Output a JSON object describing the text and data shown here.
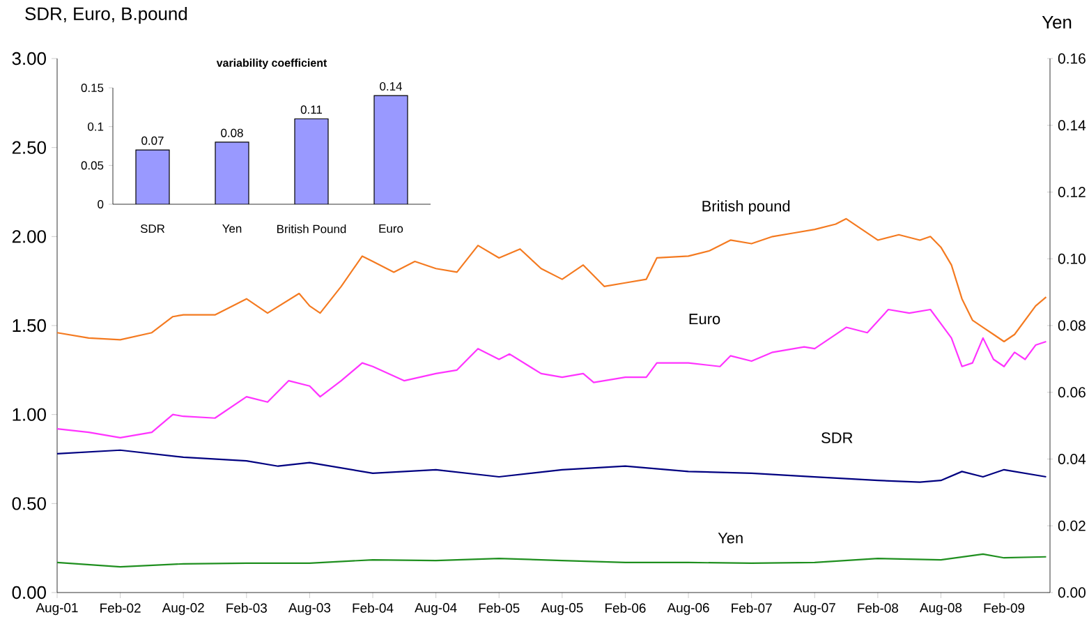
{
  "chart_data": [
    {
      "type": "line",
      "ylabel": "SDR, Euro,  B.pound",
      "y2label": "Yen",
      "xlim": [
        "2001-08",
        "2009-06-12"
      ],
      "xticks": [
        {
          "value": "2001-08",
          "label": "Aug-01"
        },
        {
          "value": "2002-02",
          "label": "Feb-02"
        },
        {
          "value": "2002-08",
          "label": "Aug-02"
        },
        {
          "value": "2003-02",
          "label": "Feb-03"
        },
        {
          "value": "2003-08",
          "label": "Aug-03"
        },
        {
          "value": "2004-02",
          "label": "Feb-04"
        },
        {
          "value": "2004-08",
          "label": "Aug-04"
        },
        {
          "value": "2005-02",
          "label": "Feb-05"
        },
        {
          "value": "2005-08",
          "label": "Aug-05"
        },
        {
          "value": "2006-02",
          "label": "Feb-06"
        },
        {
          "value": "2006-08",
          "label": "Aug-06"
        },
        {
          "value": "2007-02",
          "label": "Feb-07"
        },
        {
          "value": "2007-08",
          "label": "Aug-07"
        },
        {
          "value": "2008-02",
          "label": "Feb-08"
        },
        {
          "value": "2008-08",
          "label": "Aug-08"
        },
        {
          "value": "2009-02",
          "label": "Feb-09"
        }
      ],
      "ylim": [
        0,
        3
      ],
      "yticks": [
        {
          "value": 0,
          "label": "0.00"
        },
        {
          "value": 0.5,
          "label": "0.50"
        },
        {
          "value": 1,
          "label": "1.00"
        },
        {
          "value": 1.5,
          "label": "1.50"
        },
        {
          "value": 2,
          "label": "2.00"
        },
        {
          "value": 2.5,
          "label": "2.50"
        },
        {
          "value": 3,
          "label": "3.00"
        }
      ],
      "y2lim": [
        0,
        0.16
      ],
      "y2ticks": [
        {
          "value": 0,
          "label": "0.00"
        },
        {
          "value": 0.02,
          "label": "0.02"
        },
        {
          "value": 0.04,
          "label": "0.04"
        },
        {
          "value": 0.06,
          "label": "0.06"
        },
        {
          "value": 0.08,
          "label": "0.08"
        },
        {
          "value": 0.1,
          "label": "0.10"
        },
        {
          "value": 0.12,
          "label": "0.12"
        },
        {
          "value": 0.14,
          "label": "0.14"
        },
        {
          "value": 0.16,
          "label": "0.16"
        }
      ],
      "series": [
        {
          "name": "British pound",
          "color": "#f47a20",
          "x": [
            "2001-08",
            "2001-11",
            "2002-02",
            "2002-05",
            "2002-07",
            "2002-08",
            "2002-11",
            "2003-02",
            "2003-04",
            "2003-07",
            "2003-08",
            "2003-09",
            "2003-11",
            "2004-01",
            "2004-02",
            "2004-04",
            "2004-06",
            "2004-08",
            "2004-10",
            "2004-12",
            "2005-02",
            "2005-04",
            "2005-06",
            "2005-08",
            "2005-10",
            "2005-12",
            "2006-02",
            "2006-04",
            "2006-05",
            "2006-08",
            "2006-10",
            "2006-12",
            "2007-02",
            "2007-04",
            "2007-06",
            "2007-08",
            "2007-10",
            "2007-11",
            "2008-02",
            "2008-04",
            "2008-06",
            "2008-07",
            "2008-08",
            "2008-09",
            "2008-10",
            "2008-11",
            "2008-12",
            "2009-01",
            "2009-02",
            "2009-03",
            "2009-04",
            "2009-05",
            "2009-06"
          ],
          "values": [
            1.46,
            1.43,
            1.42,
            1.46,
            1.55,
            1.56,
            1.56,
            1.65,
            1.57,
            1.68,
            1.61,
            1.57,
            1.72,
            1.89,
            1.86,
            1.8,
            1.86,
            1.82,
            1.8,
            1.95,
            1.88,
            1.93,
            1.82,
            1.76,
            1.84,
            1.72,
            1.74,
            1.76,
            1.88,
            1.89,
            1.92,
            1.98,
            1.96,
            2.0,
            2.02,
            2.04,
            2.07,
            2.1,
            1.98,
            2.01,
            1.98,
            2.0,
            1.94,
            1.84,
            1.65,
            1.53,
            1.49,
            1.45,
            1.41,
            1.45,
            1.53,
            1.61,
            1.66
          ]
        },
        {
          "name": "Euro",
          "color": "#ff33ff",
          "x": [
            "2001-08",
            "2001-11",
            "2002-02",
            "2002-05",
            "2002-07",
            "2002-08",
            "2002-11",
            "2003-02",
            "2003-04",
            "2003-06",
            "2003-08",
            "2003-09",
            "2003-11",
            "2004-01",
            "2004-02",
            "2004-05",
            "2004-08",
            "2004-10",
            "2004-12",
            "2005-02",
            "2005-03",
            "2005-06",
            "2005-08",
            "2005-10",
            "2005-11",
            "2006-02",
            "2006-04",
            "2006-05",
            "2006-08",
            "2006-11",
            "2006-12",
            "2007-02",
            "2007-04",
            "2007-07",
            "2007-08",
            "2007-11",
            "2008-01",
            "2008-03",
            "2008-05",
            "2008-07",
            "2008-08",
            "2008-09",
            "2008-10",
            "2008-11",
            "2008-12",
            "2009-01",
            "2009-02",
            "2009-03",
            "2009-04",
            "2009-05",
            "2009-06"
          ],
          "values": [
            0.92,
            0.9,
            0.87,
            0.9,
            1.0,
            0.99,
            0.98,
            1.1,
            1.07,
            1.19,
            1.16,
            1.1,
            1.19,
            1.29,
            1.27,
            1.19,
            1.23,
            1.25,
            1.37,
            1.31,
            1.34,
            1.23,
            1.21,
            1.23,
            1.18,
            1.21,
            1.21,
            1.29,
            1.29,
            1.27,
            1.33,
            1.3,
            1.35,
            1.38,
            1.37,
            1.49,
            1.46,
            1.59,
            1.57,
            1.59,
            1.51,
            1.43,
            1.27,
            1.29,
            1.43,
            1.31,
            1.27,
            1.35,
            1.31,
            1.39,
            1.41
          ]
        },
        {
          "name": "SDR",
          "color": "#000080",
          "x": [
            "2001-08",
            "2002-02",
            "2002-08",
            "2003-02",
            "2003-05",
            "2003-08",
            "2004-02",
            "2004-08",
            "2005-02",
            "2005-08",
            "2006-02",
            "2006-08",
            "2007-02",
            "2007-08",
            "2008-02",
            "2008-06",
            "2008-08",
            "2008-10",
            "2008-12",
            "2009-02",
            "2009-06"
          ],
          "values": [
            0.78,
            0.8,
            0.76,
            0.74,
            0.71,
            0.73,
            0.67,
            0.69,
            0.65,
            0.69,
            0.71,
            0.68,
            0.67,
            0.65,
            0.63,
            0.62,
            0.63,
            0.68,
            0.65,
            0.69,
            0.65
          ]
        },
        {
          "name": "Yen",
          "color": "#1f8f1f",
          "axis": "y2",
          "x": [
            "2001-08",
            "2002-02",
            "2002-08",
            "2003-02",
            "2003-08",
            "2004-02",
            "2004-08",
            "2005-02",
            "2005-08",
            "2006-02",
            "2006-08",
            "2007-02",
            "2007-08",
            "2008-02",
            "2008-08",
            "2008-12",
            "2009-02",
            "2009-06"
          ],
          "values": [
            0.009,
            0.0077,
            0.0086,
            0.0088,
            0.0088,
            0.0098,
            0.0096,
            0.0102,
            0.0096,
            0.009,
            0.009,
            0.0088,
            0.009,
            0.0102,
            0.0098,
            0.0115,
            0.0104,
            0.0107
          ]
        }
      ]
    },
    {
      "type": "bar",
      "title": "variability coefficient",
      "categories": [
        "SDR",
        "Yen",
        "British Pound",
        "Euro"
      ],
      "values": [
        0.07,
        0.08,
        0.11,
        0.14
      ],
      "color": "#9999ff",
      "data_labels": true,
      "ylim": [
        0,
        0.15
      ],
      "yticks": [
        0,
        0.05,
        0.1,
        0.15
      ]
    }
  ]
}
